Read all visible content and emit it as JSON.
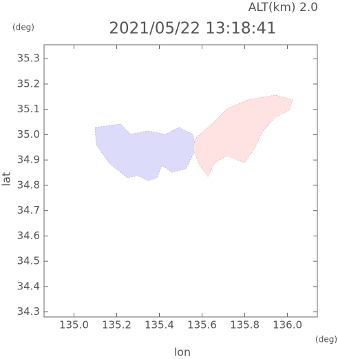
{
  "chart_data": {
    "type": "map",
    "title": "2021/05/22 13:18:41",
    "subtitle": "ALT(km) 2.0",
    "x_label": "lon",
    "x_unit": "(deg)",
    "y_label": "lat",
    "y_unit": "(deg)",
    "xlim": [
      134.86,
      136.14
    ],
    "ylim": [
      34.28,
      35.355
    ],
    "xticks": [
      {
        "value": 135.0,
        "label": "135.0"
      },
      135.2,
      135.4,
      135.6,
      135.8,
      {
        "value": 136.0,
        "label": "136.0"
      }
    ],
    "yticks": [
      34.3,
      34.4,
      34.5,
      34.6,
      34.7,
      34.8,
      34.9,
      {
        "value": 35.0,
        "label": "35.0"
      },
      35.1,
      35.2,
      35.3
    ]
  }
}
